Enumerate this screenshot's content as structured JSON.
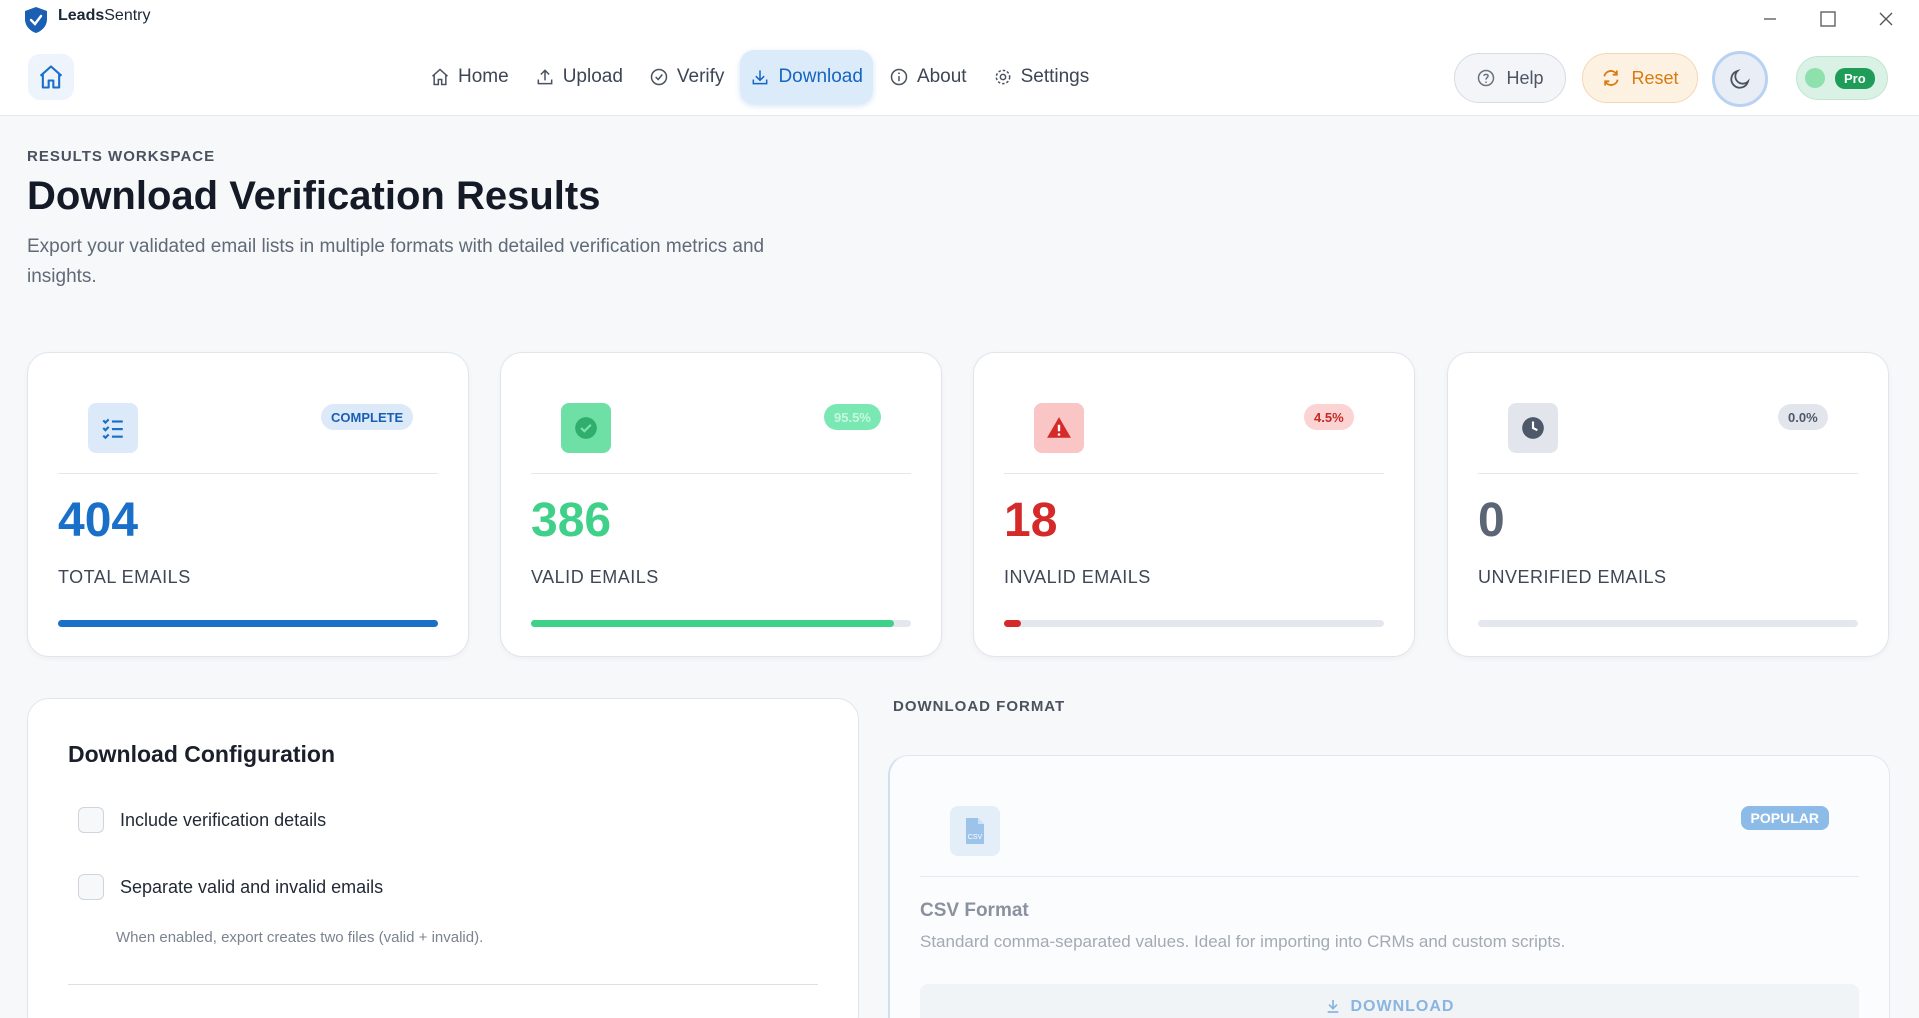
{
  "app": {
    "name_bold": "Leads",
    "name_light": "Sentry"
  },
  "nav": {
    "items": [
      {
        "label": "Home",
        "icon": "home-icon"
      },
      {
        "label": "Upload",
        "icon": "upload-icon"
      },
      {
        "label": "Verify",
        "icon": "check-circle-icon"
      },
      {
        "label": "Download",
        "icon": "download-icon",
        "active": true
      },
      {
        "label": "About",
        "icon": "info-icon"
      },
      {
        "label": "Settings",
        "icon": "gear-icon"
      }
    ],
    "help_label": "Help",
    "reset_label": "Reset",
    "pro_label": "Pro"
  },
  "header": {
    "eyebrow": "RESULTS WORKSPACE",
    "title": "Download Verification Results",
    "subtitle": "Export your validated email lists in multiple formats with detailed verification metrics and insights."
  },
  "stats": [
    {
      "value": "404",
      "label": "TOTAL EMAILS",
      "badge": "COMPLETE",
      "color": "#1a6fc9",
      "icon": "list-check-icon",
      "progress": 1.0
    },
    {
      "value": "386",
      "label": "VALID EMAILS",
      "badge": "95.5%",
      "color": "#3fd08a",
      "icon": "check-circle-icon",
      "progress": 0.955
    },
    {
      "value": "18",
      "label": "INVALID EMAILS",
      "badge": "4.5%",
      "color": "#d42a2a",
      "icon": "warning-icon",
      "progress": 0.045
    },
    {
      "value": "0",
      "label": "UNVERIFIED EMAILS",
      "badge": "0.0%",
      "color": "#5b6575",
      "icon": "clock-icon",
      "progress": 0.0
    }
  ],
  "config": {
    "title": "Download Configuration",
    "option_details": "Include verification details",
    "option_separate": "Separate valid and invalid emails",
    "hint": "When enabled, export creates two files (valid + invalid)."
  },
  "format": {
    "heading": "DOWNLOAD FORMAT",
    "card": {
      "badge": "POPULAR",
      "icon_text": "CSV",
      "title": "CSV Format",
      "description": "Standard comma-separated values. Ideal for importing into CRMs and custom scripts.",
      "button_label": "DOWNLOAD"
    }
  }
}
